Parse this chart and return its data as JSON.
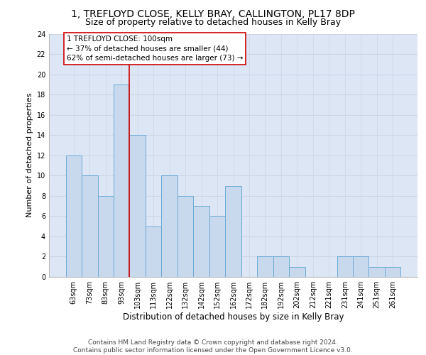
{
  "title": "1, TREFLOYD CLOSE, KELLY BRAY, CALLINGTON, PL17 8DP",
  "subtitle": "Size of property relative to detached houses in Kelly Bray",
  "xlabel": "Distribution of detached houses by size in Kelly Bray",
  "ylabel": "Number of detached properties",
  "categories": [
    "63sqm",
    "73sqm",
    "83sqm",
    "93sqm",
    "103sqm",
    "113sqm",
    "122sqm",
    "132sqm",
    "142sqm",
    "152sqm",
    "162sqm",
    "172sqm",
    "182sqm",
    "192sqm",
    "202sqm",
    "212sqm",
    "221sqm",
    "231sqm",
    "241sqm",
    "251sqm",
    "261sqm"
  ],
  "values": [
    12,
    10,
    8,
    19,
    14,
    5,
    10,
    8,
    7,
    6,
    9,
    0,
    2,
    2,
    1,
    0,
    0,
    2,
    2,
    1,
    1
  ],
  "bar_color": "#c8d9ee",
  "bar_edge_color": "#6aaad4",
  "annotation_text": "1 TREFLOYD CLOSE: 100sqm\n← 37% of detached houses are smaller (44)\n62% of semi-detached houses are larger (73) →",
  "annotation_box_color": "#ffffff",
  "annotation_box_edge_color": "#cc0000",
  "vline_color": "#cc0000",
  "ylim": [
    0,
    24
  ],
  "yticks": [
    0,
    2,
    4,
    6,
    8,
    10,
    12,
    14,
    16,
    18,
    20,
    22,
    24
  ],
  "grid_color": "#cdd5e5",
  "background_color": "#dce6f5",
  "footer_text": "Contains HM Land Registry data © Crown copyright and database right 2024.\nContains public sector information licensed under the Open Government Licence v3.0.",
  "title_fontsize": 10,
  "subtitle_fontsize": 9,
  "xlabel_fontsize": 8.5,
  "ylabel_fontsize": 8,
  "tick_fontsize": 7,
  "annotation_fontsize": 7.5,
  "footer_fontsize": 6.5
}
